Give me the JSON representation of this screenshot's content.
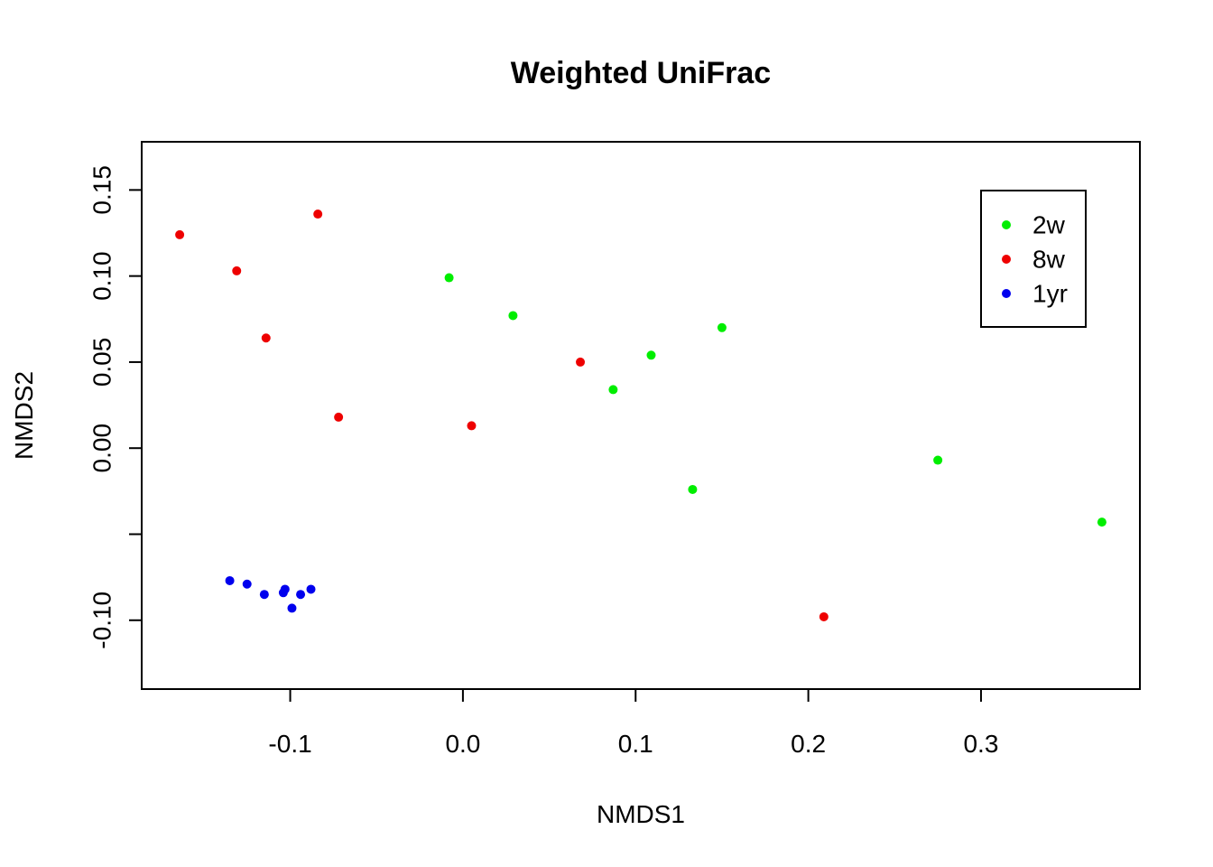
{
  "chart_data": {
    "type": "scatter",
    "title": "Weighted UniFrac",
    "xlabel": "NMDS1",
    "ylabel": "NMDS2",
    "xlim": [
      -0.186,
      0.392
    ],
    "ylim": [
      -0.14,
      0.178
    ],
    "x_ticks": [
      -0.1,
      0.0,
      0.1,
      0.2,
      0.3
    ],
    "x_tick_labels": [
      "-0.1",
      "0.0",
      "0.1",
      "0.2",
      "0.3"
    ],
    "y_ticks": [
      0.15,
      0.1,
      0.05,
      0.0,
      -0.05,
      -0.1
    ],
    "y_tick_labels": [
      "0.15",
      "0.10",
      "0.05",
      "0.00",
      "",
      "-0.10"
    ],
    "grid": false,
    "legend_position": "top-right",
    "series": [
      {
        "name": "2w",
        "color": "#00ee00",
        "points": [
          [
            -0.008,
            0.099
          ],
          [
            0.029,
            0.077
          ],
          [
            0.087,
            0.034
          ],
          [
            0.109,
            0.054
          ],
          [
            0.15,
            0.07
          ],
          [
            0.133,
            -0.024
          ],
          [
            0.275,
            -0.007
          ],
          [
            0.37,
            -0.043
          ]
        ]
      },
      {
        "name": "8w",
        "color": "#ee0000",
        "points": [
          [
            -0.164,
            0.124
          ],
          [
            -0.131,
            0.103
          ],
          [
            -0.114,
            0.064
          ],
          [
            -0.084,
            0.136
          ],
          [
            -0.072,
            0.018
          ],
          [
            0.005,
            0.013
          ],
          [
            0.068,
            0.05
          ],
          [
            0.209,
            -0.098
          ]
        ]
      },
      {
        "name": "1yr",
        "color": "#0000ee",
        "points": [
          [
            -0.135,
            -0.077
          ],
          [
            -0.125,
            -0.079
          ],
          [
            -0.115,
            -0.085
          ],
          [
            -0.104,
            -0.084
          ],
          [
            -0.103,
            -0.082
          ],
          [
            -0.099,
            -0.093
          ],
          [
            -0.094,
            -0.085
          ],
          [
            -0.088,
            -0.082
          ]
        ]
      }
    ]
  }
}
